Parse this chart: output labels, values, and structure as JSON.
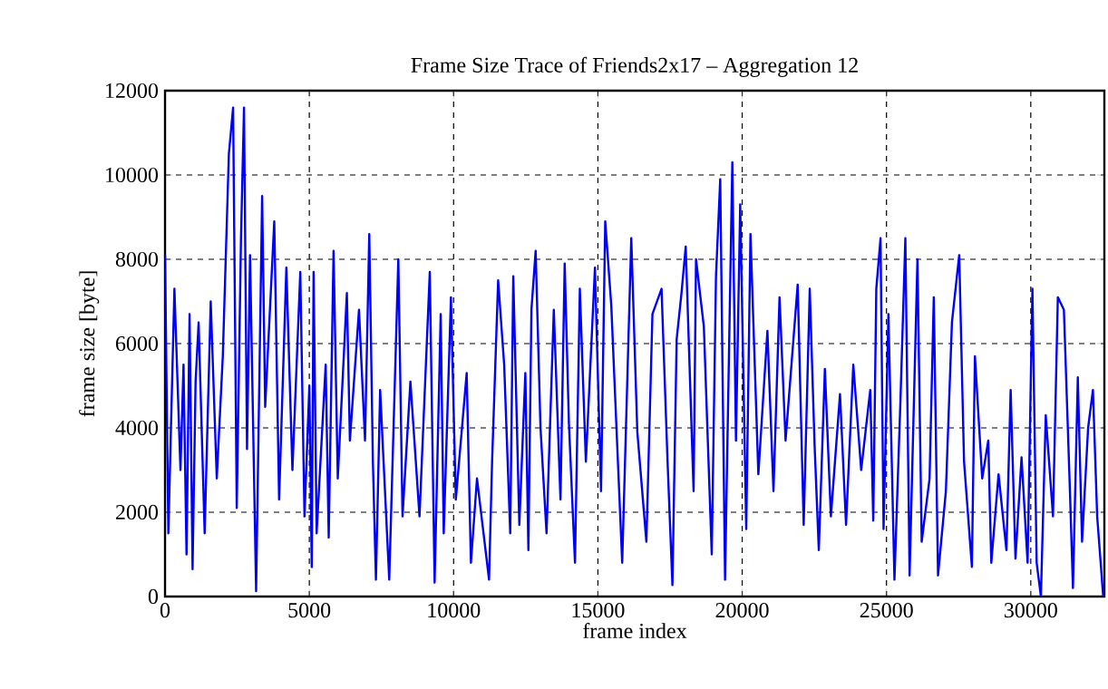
{
  "chart_data": {
    "type": "line",
    "title": "Frame Size Trace of Friends2x17 – Aggregation 12",
    "xlabel": "frame index",
    "ylabel": "frame size [byte]",
    "xlim": [
      0,
      32550
    ],
    "ylim": [
      0,
      12000
    ],
    "xticks": [
      0,
      5000,
      10000,
      15000,
      20000,
      25000,
      30000
    ],
    "yticks": [
      0,
      2000,
      4000,
      6000,
      8000,
      10000,
      12000
    ],
    "grid": true,
    "line_style": "solid",
    "marker": "none",
    "series": [
      {
        "color": "#0000ff",
        "x": [
          0,
          115,
          325,
          535,
          640,
          745,
          850,
          954,
          1059,
          1164,
          1373,
          1583,
          1793,
          2002,
          2212,
          2359,
          2485,
          2632,
          2737,
          2841,
          2946,
          3156,
          3365,
          3470,
          3785,
          3953,
          4204,
          4414,
          4687,
          4833,
          5001,
          5085,
          5148,
          5253,
          5567,
          5672,
          5840,
          5986,
          6301,
          6406,
          6721,
          6930,
          7077,
          7203,
          7308,
          7454,
          7769,
          8084,
          8230,
          8503,
          8818,
          9174,
          9342,
          9552,
          9657,
          9908,
          10076,
          10453,
          10600,
          10810,
          11228,
          11333,
          11543,
          11752,
          11962,
          12067,
          12277,
          12486,
          12591,
          12696,
          12843,
          13011,
          13220,
          13472,
          13703,
          13849,
          13996,
          14206,
          14374,
          14583,
          14898,
          15108,
          15254,
          15464,
          15842,
          16156,
          16366,
          16680,
          16890,
          17205,
          17414,
          17582,
          17729,
          17897,
          18043,
          18316,
          18400,
          18672,
          18945,
          19092,
          19239,
          19406,
          19658,
          19784,
          19931,
          20140,
          20287,
          20560,
          20874,
          21084,
          21294,
          21503,
          21923,
          22131,
          22341,
          22508,
          22655,
          22865,
          23074,
          23389,
          23599,
          23850,
          24123,
          24438,
          24542,
          24647,
          24794,
          24899,
          25067,
          25276,
          25486,
          25654,
          25801,
          26073,
          26220,
          26493,
          26639,
          26786,
          27059,
          27268,
          27520,
          27688,
          27960,
          28065,
          28317,
          28527,
          28632,
          28883,
          29156,
          29303,
          29470,
          29680,
          29890,
          30057,
          30204,
          30351,
          30519,
          30770,
          30938,
          31148,
          31357,
          31462,
          31630,
          31777,
          31987,
          32154,
          32301,
          32510
        ],
        "values": [
          8100,
          1500,
          7300,
          3000,
          5500,
          1000,
          6700,
          650,
          5100,
          6500,
          1500,
          7000,
          2800,
          5700,
          10500,
          11600,
          2100,
          8500,
          11600,
          3500,
          8100,
          130,
          9500,
          4500,
          8900,
          2300,
          7800,
          3000,
          7700,
          1900,
          5000,
          700,
          7700,
          1500,
          5500,
          1400,
          8200,
          2800,
          7200,
          3700,
          6800,
          3700,
          8600,
          3200,
          400,
          4900,
          400,
          8000,
          1900,
          5100,
          1900,
          7700,
          330,
          6700,
          1500,
          7100,
          2300,
          5300,
          800,
          2800,
          400,
          3200,
          7500,
          5500,
          1500,
          7600,
          1700,
          5300,
          1100,
          6800,
          8200,
          4000,
          1500,
          6800,
          2300,
          7900,
          4100,
          800,
          7300,
          3200,
          7800,
          2500,
          8900,
          6900,
          800,
          8500,
          3900,
          1300,
          6700,
          7300,
          3200,
          270,
          6100,
          7200,
          8300,
          2500,
          8000,
          6400,
          1000,
          7600,
          9900,
          400,
          10300,
          3700,
          9300,
          1600,
          8600,
          2900,
          6300,
          2500,
          7100,
          3700,
          7400,
          1700,
          7300,
          3600,
          1100,
          5400,
          1900,
          4800,
          1700,
          5500,
          3000,
          4900,
          1800,
          7300,
          8500,
          1600,
          6700,
          400,
          4700,
          8500,
          500,
          8000,
          1300,
          2800,
          7100,
          500,
          2500,
          6500,
          8100,
          3200,
          700,
          5700,
          2800,
          3700,
          800,
          2900,
          1100,
          4900,
          900,
          3300,
          800,
          7300,
          800,
          0,
          4300,
          1900,
          7100,
          6800,
          2500,
          200,
          5200,
          1300,
          4000,
          4900,
          1900,
          0
        ]
      }
    ]
  }
}
